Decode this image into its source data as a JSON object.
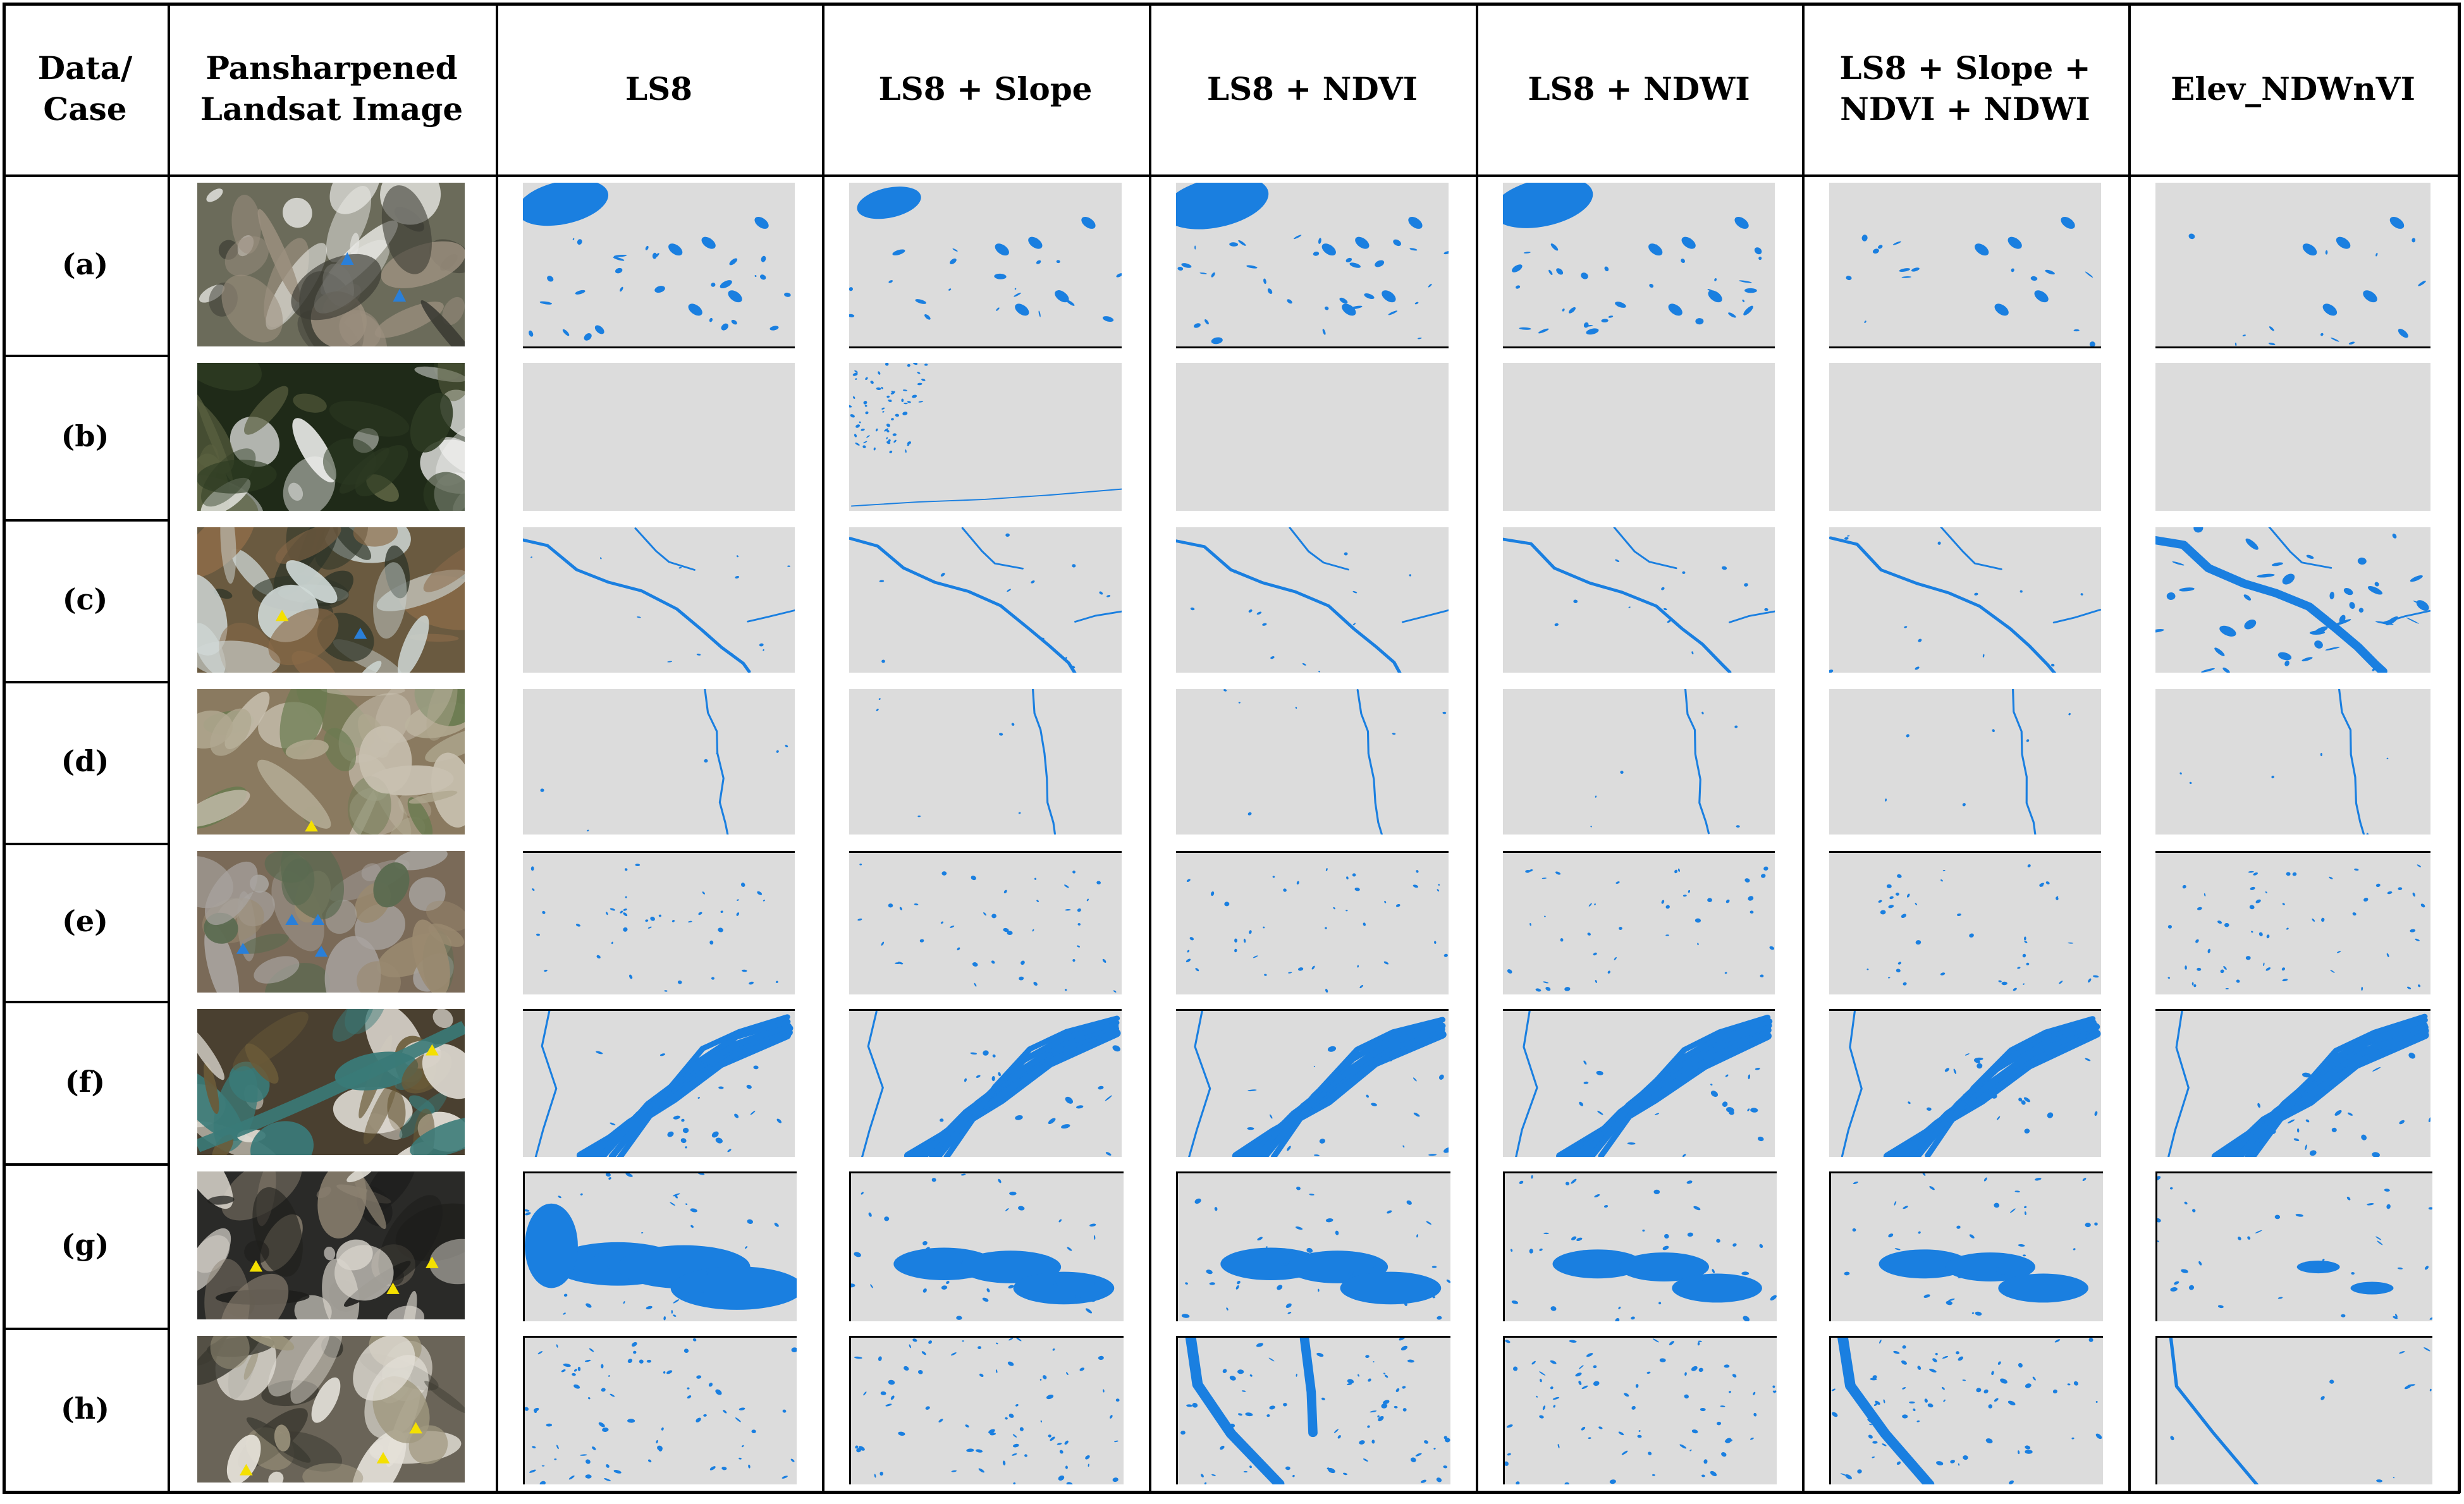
{
  "header": {
    "col0": "Data/\nCase",
    "col1": "Pansharpened\nLandsat Image",
    "cases": [
      "LS8",
      "LS8 + Slope",
      "LS8 + NDVI",
      "LS8 + NDWI",
      "LS8 + Slope +\nNDVI + NDWI",
      "Elev_NDWnVI"
    ]
  },
  "rows": [
    "(a)",
    "(b)",
    "(c)",
    "(d)",
    "(e)",
    "(f)",
    "(g)",
    "(h)"
  ],
  "colors": {
    "water": "#1a7fe0",
    "map_background": "#dcdcdc",
    "marker_yellow": "#f4e000",
    "marker_blue": "#2a7fd8"
  },
  "photo_palettes": [
    [
      "#6b6b5a",
      "#e8e8e4",
      "#3a3a32",
      "#9c9080"
    ],
    [
      "#1f2a18",
      "#f0f0ee",
      "#2d3a22",
      "#5a6040"
    ],
    [
      "#6a5a40",
      "#2e3428",
      "#cfd8d6",
      "#8a6a48"
    ],
    [
      "#8a7a60",
      "#b0a890",
      "#6a7a50",
      "#c8c0b0"
    ],
    [
      "#7a6a58",
      "#a8a4a0",
      "#5a6a50",
      "#9a8a70"
    ],
    [
      "#4a4030",
      "#3a7a78",
      "#e0dcd4",
      "#6a5a38"
    ],
    [
      "#2a2a28",
      "#d8d4cc",
      "#8a8070",
      "#1e1e1c"
    ],
    [
      "#6a6458",
      "#e4e0d8",
      "#3a3830",
      "#a09880"
    ]
  ]
}
